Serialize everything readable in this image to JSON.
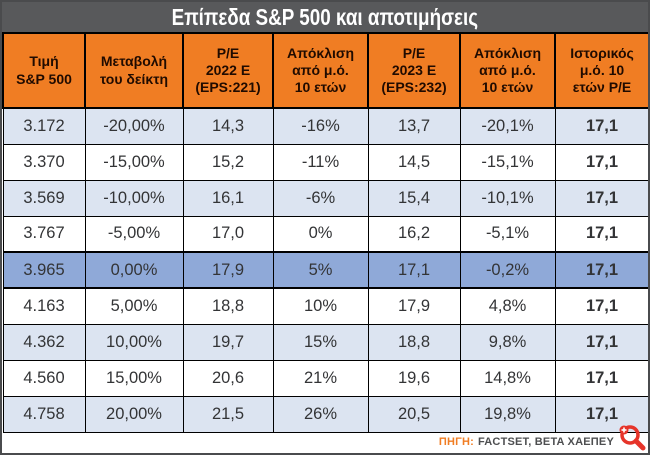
{
  "title": "Επίπεδα S&P 500 και αποτιμήσεις",
  "table": {
    "headers": [
      "Τιμή\nS&P 500",
      "Μεταβολή\nτου δείκτη",
      "P/E\n2022 E\n(EPS:221)",
      "Απόκλιση\nαπό μ.ό.\n10 ετών",
      "P/E\n2023 E\n(EPS:232)",
      "Απόκλιση\nαπό μ.ό.\n10 ετών",
      "Ιστορικός\nμ.ό. 10\nετών P/E"
    ],
    "rows": [
      [
        "3.172",
        "-20,00%",
        "14,3",
        "-16%",
        "13,7",
        "-20,1%",
        "17,1"
      ],
      [
        "3.370",
        "-15,00%",
        "15,2",
        "-11%",
        "14,5",
        "-15,1%",
        "17,1"
      ],
      [
        "3.569",
        "-10,00%",
        "16,1",
        "-6%",
        "15,4",
        "-10,1%",
        "17,1"
      ],
      [
        "3.767",
        "-5,00%",
        "17,0",
        "0%",
        "16,2",
        "-5,1%",
        "17,1"
      ],
      [
        "3.965",
        "0,00%",
        "17,9",
        "5%",
        "17,1",
        "-0,2%",
        "17,1"
      ],
      [
        "4.163",
        "5,00%",
        "18,8",
        "10%",
        "17,9",
        "4,8%",
        "17,1"
      ],
      [
        "4.362",
        "10,00%",
        "19,7",
        "15%",
        "18,8",
        "9,8%",
        "17,1"
      ],
      [
        "4.560",
        "15,00%",
        "20,6",
        "21%",
        "19,6",
        "14,8%",
        "17,1"
      ],
      [
        "4.758",
        "20,00%",
        "21,5",
        "26%",
        "20,5",
        "19,8%",
        "17,1"
      ]
    ],
    "highlighted_row_index": 4
  },
  "source": {
    "label": "ΠΗΓΗ:",
    "text": "FACTSET, BETA ΧΑΕΠΕΥ"
  },
  "icons": {
    "zoom_in": "magnifier-plus-icon"
  },
  "colors": {
    "title_bg": "#58595b",
    "title_text": "#ffffff",
    "header_bg": "#f07d23",
    "header_text": "#200b00",
    "row_alt_bg": "#dce4f1",
    "row_highlight_bg": "#8fa9d8",
    "border": "#000000",
    "source_label": "#f07d23",
    "source_text": "#4d4e50",
    "zoom_icon": "#e6342a"
  },
  "chart_data": {
    "type": "table",
    "title": "Επίπεδα S&P 500 και αποτιμήσεις",
    "columns": [
      "Τιμή S&P 500",
      "Μεταβολή του δείκτη",
      "P/E 2022 E (EPS:221)",
      "Απόκλιση από μ.ό. 10 ετών",
      "P/E 2023 E (EPS:232)",
      "Απόκλιση από μ.ό. 10 ετών",
      "Ιστορικός μ.ό. 10 ετών P/E"
    ],
    "rows": [
      [
        "3.172",
        "-20,00%",
        "14,3",
        "-16%",
        "13,7",
        "-20,1%",
        "17,1"
      ],
      [
        "3.370",
        "-15,00%",
        "15,2",
        "-11%",
        "14,5",
        "-15,1%",
        "17,1"
      ],
      [
        "3.569",
        "-10,00%",
        "16,1",
        "-6%",
        "15,4",
        "-10,1%",
        "17,1"
      ],
      [
        "3.767",
        "-5,00%",
        "17,0",
        "0%",
        "16,2",
        "-5,1%",
        "17,1"
      ],
      [
        "3.965",
        "0,00%",
        "17,9",
        "5%",
        "17,1",
        "-0,2%",
        "17,1"
      ],
      [
        "4.163",
        "5,00%",
        "18,8",
        "10%",
        "17,9",
        "4,8%",
        "17,1"
      ],
      [
        "4.362",
        "10,00%",
        "19,7",
        "15%",
        "18,8",
        "9,8%",
        "17,1"
      ],
      [
        "4.560",
        "15,00%",
        "20,6",
        "21%",
        "19,6",
        "14,8%",
        "17,1"
      ],
      [
        "4.758",
        "20,00%",
        "21,5",
        "26%",
        "20,5",
        "19,8%",
        "17,1"
      ]
    ],
    "highlighted_row_index": 4,
    "source": "ΠΗΓΗ: FACTSET, BETA ΧΑΕΠΕΥ"
  }
}
